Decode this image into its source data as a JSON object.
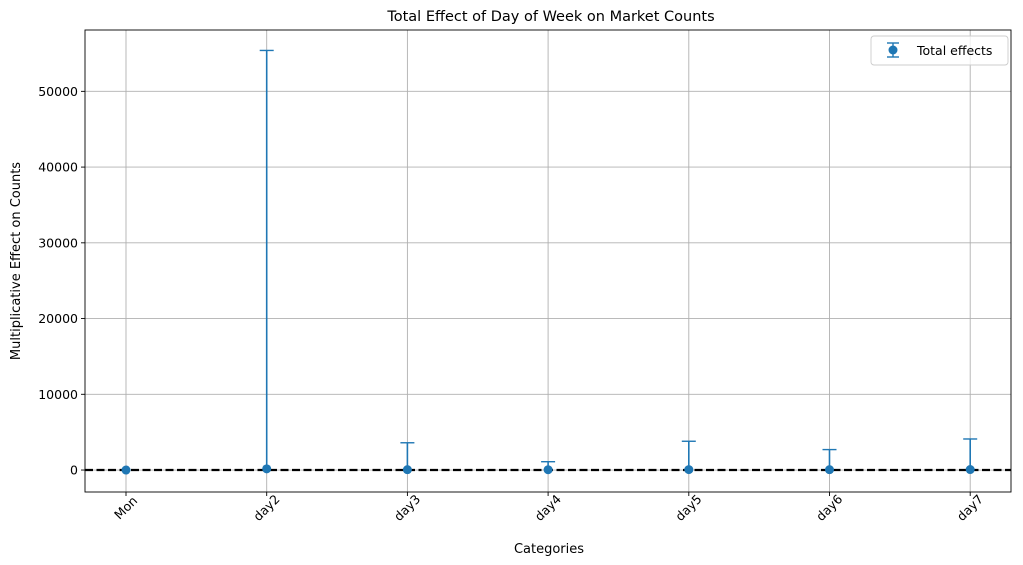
{
  "chart_data": {
    "type": "scatter",
    "subtype": "errorbar",
    "title": "Total Effect of Day of Week on Market Counts",
    "xlabel": "Categories",
    "ylabel": "Multiplicative Effect on Counts",
    "categories": [
      "Mon",
      "day2",
      "day3",
      "day4",
      "day5",
      "day6",
      "day7"
    ],
    "series": [
      {
        "name": "Total effects",
        "color": "#1f77b4",
        "values": [
          1,
          160,
          50,
          40,
          60,
          50,
          70
        ],
        "upper": [
          1,
          55400,
          3600,
          1100,
          3800,
          2700,
          4100
        ]
      }
    ],
    "ylim": [
      -2900,
      58100
    ],
    "yticks": [
      0,
      10000,
      20000,
      30000,
      40000,
      50000
    ],
    "ytick_labels": [
      "0",
      "10000",
      "20000",
      "30000",
      "40000",
      "50000"
    ],
    "reference_line": {
      "y": 0,
      "style": "dashed",
      "color": "#000000"
    },
    "grid": true,
    "legend_position": "top-right",
    "xtick_rotation": 45
  }
}
